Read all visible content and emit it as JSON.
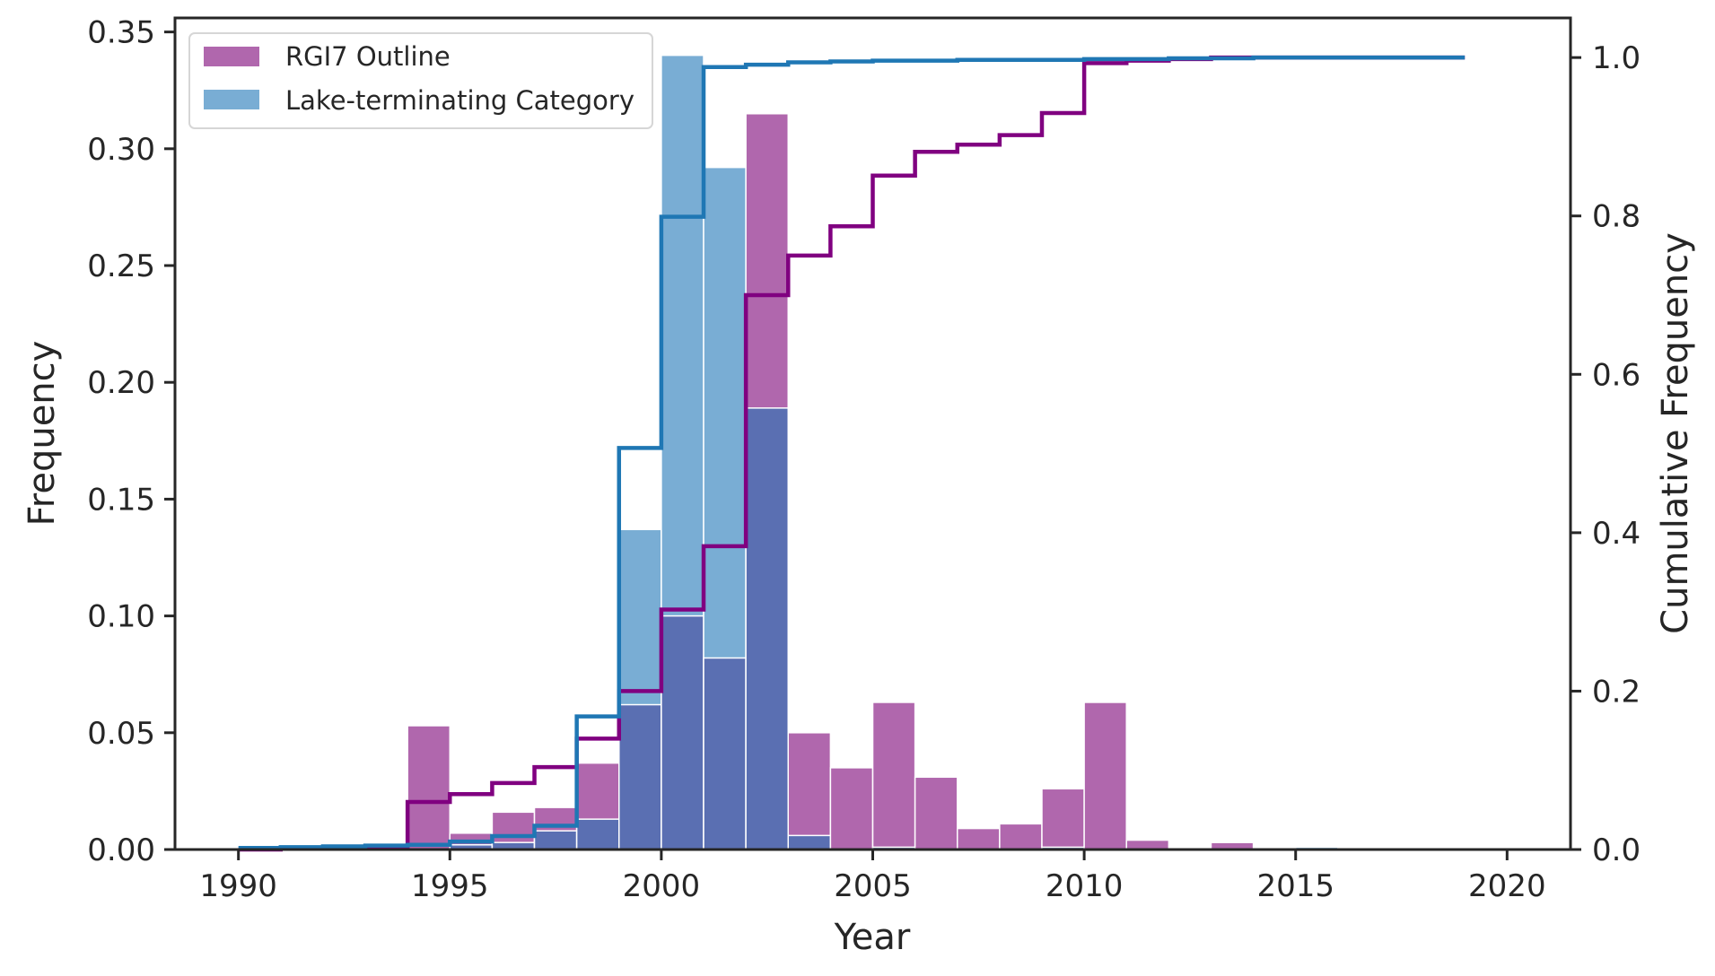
{
  "chart_data": {
    "type": "bar",
    "xlabel": "Year",
    "ylabel": "Frequency",
    "y2label": "Cumulative Frequency",
    "xlim": [
      1988.5,
      2021.5
    ],
    "ylim": [
      0,
      0.356
    ],
    "y2lim": [
      0,
      1.05
    ],
    "grid": false,
    "legend_position": "top-left",
    "x_ticks": [
      "1990",
      "1995",
      "2000",
      "2005",
      "2010",
      "2015",
      "2020"
    ],
    "y_ticks": [
      "0.00",
      "0.05",
      "0.10",
      "0.15",
      "0.20",
      "0.25",
      "0.30",
      "0.35"
    ],
    "y2_ticks": [
      "0.0",
      "0.2",
      "0.4",
      "0.6",
      "0.8",
      "1.0"
    ],
    "bin_edges": [
      1990,
      1991,
      1992,
      1993,
      1994,
      1995,
      1996,
      1997,
      1998,
      1999,
      2000,
      2001,
      2002,
      2003,
      2004,
      2005,
      2006,
      2007,
      2008,
      2009,
      2010,
      2011,
      2012,
      2013,
      2014,
      2015,
      2016,
      2017,
      2018,
      2019
    ],
    "series": [
      {
        "name": "RGI7 Outline",
        "color": "#9b3d96",
        "bar_color": "#b067ad",
        "values": [
          0.0,
          0.001,
          0.002,
          0.0,
          0.053,
          0.007,
          0.016,
          0.018,
          0.037,
          0.062,
          0.1,
          0.082,
          0.315,
          0.05,
          0.035,
          0.063,
          0.031,
          0.009,
          0.011,
          0.026,
          0.063,
          0.004,
          0.0,
          0.003,
          0.0,
          0.0,
          0.0,
          0.0,
          0.0
        ],
        "cumulative_color": "#800080",
        "cumulative": [
          0.0,
          0.001,
          0.003,
          0.003,
          0.06,
          0.07,
          0.084,
          0.104,
          0.14,
          0.2,
          0.303,
          0.383,
          0.7,
          0.75,
          0.787,
          0.851,
          0.881,
          0.89,
          0.902,
          0.93,
          0.993,
          0.996,
          0.998,
          1.0,
          1.0,
          1.0,
          1.0,
          1.0,
          1.0
        ]
      },
      {
        "name": "Lake-terminating Category",
        "color": "#1f77b4",
        "bar_color": "#79add4",
        "values": [
          0.0,
          0.0,
          0.0,
          0.0,
          0.0,
          0.002,
          0.003,
          0.008,
          0.013,
          0.137,
          0.34,
          0.292,
          0.189,
          0.006,
          0.0,
          0.001,
          0.0,
          0.0,
          0.0,
          0.001,
          0.0,
          0.0,
          0.0,
          0.0,
          0.0,
          0.001,
          0.0,
          0.0,
          0.0
        ],
        "cumulative_color": "#1f77b4",
        "cumulative": [
          0.002,
          0.003,
          0.004,
          0.005,
          0.006,
          0.01,
          0.017,
          0.03,
          0.168,
          0.507,
          0.799,
          0.988,
          0.991,
          0.994,
          0.995,
          0.996,
          0.996,
          0.997,
          0.997,
          0.997,
          0.998,
          0.998,
          0.999,
          0.999,
          1.0,
          1.0,
          1.0,
          1.0,
          1.0
        ]
      }
    ],
    "overlap_color": "#5a6fb2"
  }
}
